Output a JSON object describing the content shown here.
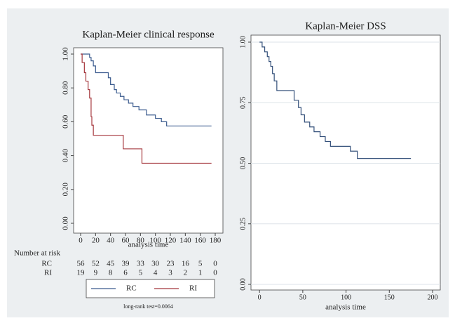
{
  "chart_data": [
    {
      "type": "step",
      "title": "Kaplan-Meier clinical response",
      "x_label": "analysis time",
      "xlim": [
        0,
        180
      ],
      "xticks": [
        0,
        20,
        40,
        60,
        80,
        100,
        120,
        140,
        160,
        180
      ],
      "ylim": [
        0,
        1
      ],
      "yticks": [
        {
          "value": 0,
          "label": "0.00"
        },
        {
          "value": 0.2,
          "label": "0.20"
        },
        {
          "value": 0.4,
          "label": "0.40"
        },
        {
          "value": 0.6,
          "label": "0.60"
        },
        {
          "value": 0.8,
          "label": "0.80"
        },
        {
          "value": 1,
          "label": "1.00"
        }
      ],
      "grid": false,
      "legend": "bottom",
      "series": [
        {
          "name": "RC",
          "color": "#3b5b8e",
          "x": [
            0,
            12,
            14,
            17,
            20,
            37,
            40,
            45,
            48,
            53,
            58,
            64,
            70,
            78,
            88,
            100,
            108,
            115,
            175
          ],
          "values": [
            1,
            0.98,
            0.96,
            0.93,
            0.89,
            0.86,
            0.82,
            0.79,
            0.77,
            0.75,
            0.73,
            0.71,
            0.69,
            0.67,
            0.64,
            0.62,
            0.6,
            0.575,
            0.575
          ]
        },
        {
          "name": "RI",
          "color": "#a5363c",
          "x": [
            0,
            2,
            5,
            7,
            10,
            12,
            14,
            15,
            17,
            57,
            82,
            175
          ],
          "values": [
            1,
            0.95,
            0.89,
            0.84,
            0.79,
            0.74,
            0.63,
            0.58,
            0.52,
            0.44,
            0.355,
            0.355
          ]
        }
      ],
      "risk_table": {
        "title": "Number at risk",
        "rows": [
          {
            "name": "RC",
            "values": [
              56,
              52,
              45,
              39,
              33,
              30,
              23,
              16,
              5,
              0
            ]
          },
          {
            "name": "RI",
            "values": [
              19,
              9,
              8,
              6,
              5,
              4,
              3,
              2,
              1,
              0
            ]
          }
        ]
      },
      "note": "long-rank test=0.0064"
    },
    {
      "type": "step",
      "title": "Kaplan-Meier DSS",
      "x_label": "analysis time",
      "xlim": [
        -5,
        200
      ],
      "xticks": [
        0,
        50,
        100,
        150,
        200
      ],
      "ylim": [
        0,
        1
      ],
      "yticks": [
        {
          "value": 0,
          "label": "0.00"
        },
        {
          "value": 0.25,
          "label": "0.25"
        },
        {
          "value": 0.5,
          "label": "0.50"
        },
        {
          "value": 0.75,
          "label": "0.75"
        },
        {
          "value": 1,
          "label": "1.00"
        }
      ],
      "grid": true,
      "series": [
        {
          "color": "#34507a",
          "x": [
            0,
            3,
            6,
            9,
            11,
            13,
            15,
            17,
            20,
            40,
            45,
            48,
            52,
            58,
            63,
            70,
            76,
            82,
            105,
            113,
            175
          ],
          "values": [
            1,
            0.98,
            0.96,
            0.94,
            0.92,
            0.9,
            0.87,
            0.84,
            0.8,
            0.76,
            0.73,
            0.7,
            0.67,
            0.65,
            0.63,
            0.61,
            0.59,
            0.57,
            0.55,
            0.52,
            0.52
          ]
        }
      ]
    }
  ]
}
